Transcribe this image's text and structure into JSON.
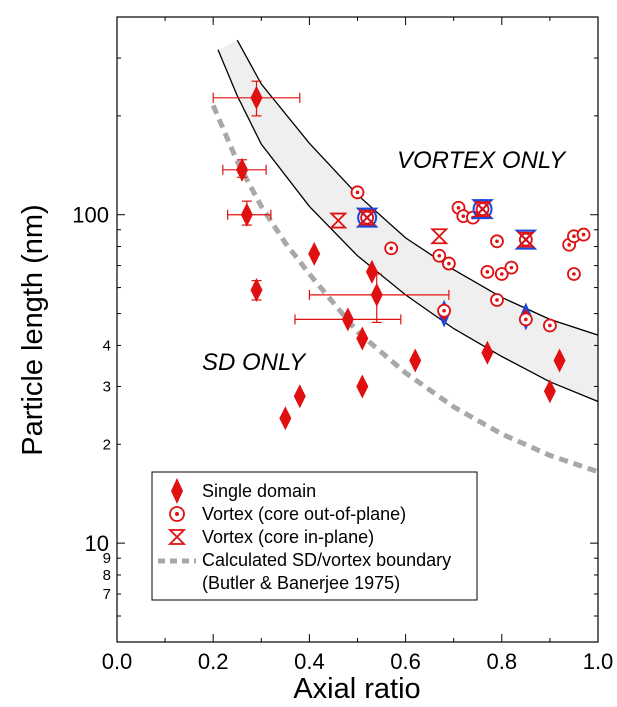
{
  "chart_data": {
    "type": "scatter",
    "title": "",
    "xlabel": "Axial ratio",
    "ylabel": "Particle length (nm)",
    "xlim": [
      0.0,
      1.0
    ],
    "ylim": [
      5,
      400
    ],
    "yscale": "log",
    "x_ticks": [
      "0.0",
      "0.2",
      "0.4",
      "0.6",
      "0.8",
      "1.0"
    ],
    "y_major_ticks": [
      "10",
      "100"
    ],
    "y_minor_ticks": [
      "7",
      "8",
      "9",
      "2",
      "3",
      "4"
    ],
    "annotations": [
      "VORTEX ONLY",
      "SD ONLY"
    ],
    "legend_position": "bottom-center",
    "legend": {
      "single_domain": "Single domain",
      "vortex_out": "Vortex (core out-of-plane)",
      "vortex_in": "Vortex (core in-plane)",
      "boundary": "Calculated SD/vortex boundary",
      "boundary_ref": "(Butler & Banerjee 1975)"
    },
    "colors": {
      "data": "#e01010",
      "highlight": "#1848e0",
      "boundary": "#a8a8a8",
      "band": "#efefef"
    },
    "series": [
      {
        "name": "Single domain",
        "points": [
          {
            "x": 0.29,
            "y": 227,
            "xerr": [
              0.2,
              0.38
            ],
            "yerr": [
              200,
              255
            ]
          },
          {
            "x": 0.26,
            "y": 137,
            "xerr": [
              0.22,
              0.31
            ],
            "yerr": [
              130,
              147
            ]
          },
          {
            "x": 0.27,
            "y": 100,
            "xerr": [
              0.23,
              0.32
            ],
            "yerr": [
              93,
              110
            ]
          },
          {
            "x": 0.29,
            "y": 59,
            "yerr": [
              55,
              63
            ]
          },
          {
            "x": 0.41,
            "y": 76
          },
          {
            "x": 0.53,
            "y": 67
          },
          {
            "x": 0.54,
            "y": 57,
            "xerr": [
              0.4,
              0.69
            ],
            "yerr": [
              47,
              66
            ]
          },
          {
            "x": 0.48,
            "y": 48,
            "xerr": [
              0.37,
              0.59
            ]
          },
          {
            "x": 0.51,
            "y": 42
          },
          {
            "x": 0.62,
            "y": 36
          },
          {
            "x": 0.77,
            "y": 38
          },
          {
            "x": 0.92,
            "y": 36
          },
          {
            "x": 0.9,
            "y": 29
          },
          {
            "x": 0.51,
            "y": 30
          },
          {
            "x": 0.38,
            "y": 28
          },
          {
            "x": 0.35,
            "y": 24
          },
          {
            "x": 0.68,
            "y": 50,
            "highlight": true
          },
          {
            "x": 0.85,
            "y": 49,
            "highlight": true
          }
        ]
      },
      {
        "name": "Vortex (core out-of-plane)",
        "points": [
          {
            "x": 0.5,
            "y": 117
          },
          {
            "x": 0.52,
            "y": 98,
            "highlight": true
          },
          {
            "x": 0.57,
            "y": 79
          },
          {
            "x": 0.67,
            "y": 75
          },
          {
            "x": 0.69,
            "y": 71
          },
          {
            "x": 0.68,
            "y": 51
          },
          {
            "x": 0.71,
            "y": 105
          },
          {
            "x": 0.72,
            "y": 99
          },
          {
            "x": 0.74,
            "y": 98
          },
          {
            "x": 0.76,
            "y": 104,
            "highlight": true
          },
          {
            "x": 0.77,
            "y": 67
          },
          {
            "x": 0.79,
            "y": 83
          },
          {
            "x": 0.8,
            "y": 66
          },
          {
            "x": 0.82,
            "y": 69
          },
          {
            "x": 0.79,
            "y": 55
          },
          {
            "x": 0.85,
            "y": 84
          },
          {
            "x": 0.85,
            "y": 48
          },
          {
            "x": 0.9,
            "y": 46
          },
          {
            "x": 0.94,
            "y": 81
          },
          {
            "x": 0.95,
            "y": 86
          },
          {
            "x": 0.97,
            "y": 87
          },
          {
            "x": 0.95,
            "y": 66
          }
        ]
      },
      {
        "name": "Vortex (core in-plane)",
        "points": [
          {
            "x": 0.46,
            "y": 96
          },
          {
            "x": 0.52,
            "y": 98,
            "highlight": true
          },
          {
            "x": 0.67,
            "y": 86
          },
          {
            "x": 0.76,
            "y": 104,
            "highlight": true
          },
          {
            "x": 0.85,
            "y": 84,
            "highlight": true
          }
        ]
      }
    ],
    "curves": {
      "band_upper": {
        "x": [
          0.25,
          0.3,
          0.4,
          0.5,
          0.6,
          0.7,
          0.8,
          0.9,
          1.0
        ],
        "y": [
          340,
          250,
          165,
          115,
          85,
          68,
          56,
          48,
          43
        ]
      },
      "band_lower": {
        "x": [
          0.21,
          0.25,
          0.3,
          0.4,
          0.5,
          0.6,
          0.7,
          0.8,
          0.9,
          1.0
        ],
        "y": [
          318,
          230,
          164,
          106,
          75,
          57,
          45,
          37,
          31,
          27
        ]
      },
      "boundary": {
        "x": [
          0.2,
          0.25,
          0.3,
          0.35,
          0.4,
          0.5,
          0.6,
          0.7,
          0.8,
          0.9,
          1.0
        ],
        "y": [
          215,
          145,
          106,
          82,
          66,
          44,
          33,
          26,
          21.5,
          18.5,
          16.5
        ]
      }
    }
  }
}
